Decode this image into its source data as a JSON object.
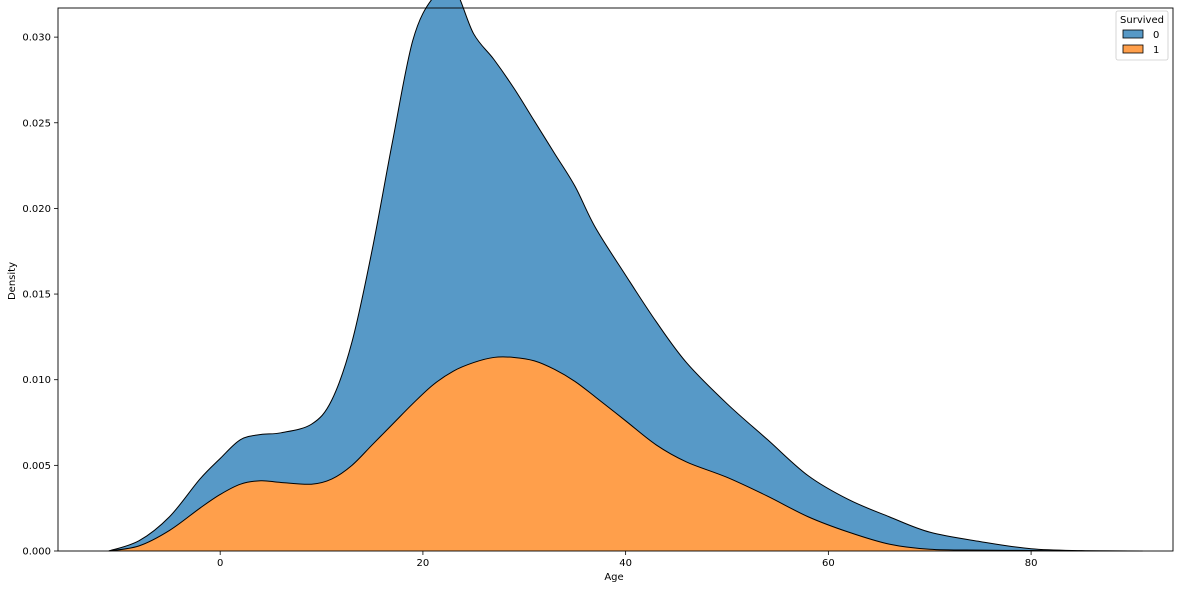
{
  "chart_data": {
    "type": "area",
    "stacking": "stacked",
    "xlabel": "Age",
    "ylabel": "Density",
    "xlim": [
      -16,
      94
    ],
    "ylim": [
      0,
      0.0317
    ],
    "xticks": [
      0,
      20,
      40,
      60,
      80
    ],
    "yticks": [
      0.0,
      0.005,
      0.01,
      0.015,
      0.02,
      0.025,
      0.03
    ],
    "ytick_labels": [
      "0.000",
      "0.005",
      "0.010",
      "0.015",
      "0.020",
      "0.025",
      "0.030"
    ],
    "grid": false,
    "legend": {
      "title": "Survived",
      "placement": "top-right"
    },
    "x": [
      -11,
      -8,
      -5,
      -2,
      0,
      2,
      4,
      6,
      9,
      11,
      13,
      15,
      17,
      19,
      21,
      23,
      25,
      27,
      29,
      31,
      33,
      35,
      37,
      40,
      43,
      46,
      50,
      54,
      58,
      62,
      66,
      70,
      75,
      80,
      85,
      91
    ],
    "series": [
      {
        "name": "1",
        "color": "#ff9f4b",
        "values": [
          0.0,
          0.0003,
          0.0012,
          0.0025,
          0.0033,
          0.0039,
          0.0041,
          0.004,
          0.0039,
          0.0042,
          0.005,
          0.0062,
          0.0074,
          0.0086,
          0.0097,
          0.0105,
          0.011,
          0.0113,
          0.0113,
          0.0111,
          0.0106,
          0.0099,
          0.009,
          0.0076,
          0.0062,
          0.0052,
          0.0043,
          0.0032,
          0.002,
          0.0011,
          0.0004,
          0.0001,
          5e-05,
          3e-05,
          1e-05,
          0.0
        ]
      },
      {
        "name": "0",
        "color": "#5799c7",
        "values": [
          0.0,
          0.0003,
          0.0008,
          0.0017,
          0.0021,
          0.0026,
          0.0027,
          0.0029,
          0.0035,
          0.0046,
          0.0072,
          0.0114,
          0.0165,
          0.0212,
          0.0226,
          0.0224,
          0.0192,
          0.0174,
          0.0157,
          0.014,
          0.0126,
          0.0114,
          0.0099,
          0.0085,
          0.0072,
          0.0058,
          0.0043,
          0.0033,
          0.0024,
          0.0019,
          0.0016,
          0.001,
          0.0005,
          0.0001,
          1e-05,
          0.0
        ]
      }
    ]
  }
}
